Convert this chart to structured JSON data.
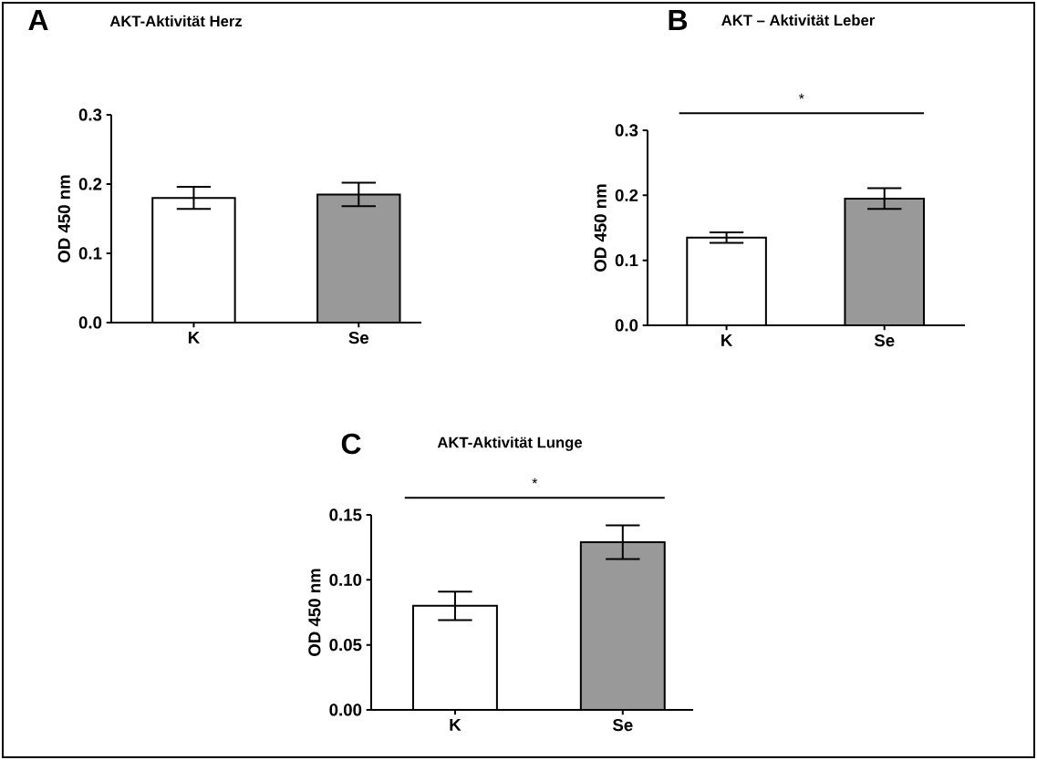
{
  "chart_data": [
    {
      "type": "bar",
      "title": "AKT-Aktivität Herz",
      "ylabel": "OD 450 nm",
      "categories": [
        "K",
        "Se"
      ],
      "values": [
        0.18,
        0.185
      ],
      "errors": [
        0.016,
        0.017
      ],
      "colors": [
        "#ffffff",
        "#999999"
      ],
      "ylim": [
        0,
        0.3
      ],
      "yticks": [
        {
          "value": 0,
          "label": "0.0"
        },
        0.1,
        0.2,
        0.3
      ],
      "annotations": [
        "A"
      ]
    },
    {
      "type": "bar",
      "title": "AKT – Aktivität Leber",
      "ylabel": "OD 450 nm",
      "categories": [
        "K",
        "Se"
      ],
      "values": [
        0.135,
        0.195
      ],
      "errors": [
        0.008,
        0.016
      ],
      "colors": [
        "#ffffff",
        "#999999"
      ],
      "ylim": [
        0,
        0.3
      ],
      "yticks": [
        {
          "value": 0,
          "label": "0.0"
        },
        0.1,
        0.2,
        0.3
      ],
      "annotations": [
        "B",
        "*"
      ]
    },
    {
      "type": "bar",
      "title": "AKT-Aktivität Lunge",
      "ylabel": "OD 450 nm",
      "categories": [
        "K",
        "Se"
      ],
      "values": [
        0.08,
        0.129
      ],
      "errors": [
        0.011,
        0.013
      ],
      "colors": [
        "#ffffff",
        "#999999"
      ],
      "ylim": [
        0,
        0.15
      ],
      "yticks": [
        {
          "value": 0,
          "label": "0.00"
        },
        {
          "value": 0.05,
          "label": "0.05"
        },
        {
          "value": 0.1,
          "label": "0.10"
        },
        {
          "value": 0.15,
          "label": "0.15"
        }
      ],
      "annotations": [
        "C",
        "*"
      ]
    }
  ]
}
